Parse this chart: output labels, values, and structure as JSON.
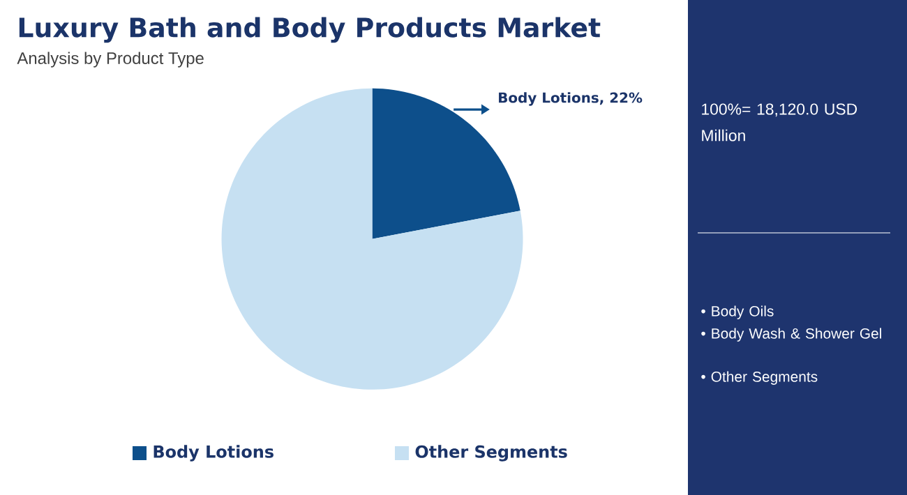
{
  "chart_data": {
    "type": "pie",
    "title": "Luxury Bath and Body Products Market",
    "subtitle": "Analysis by Product Type",
    "categories": [
      "Body Lotions",
      "Other Segments"
    ],
    "values": [
      22,
      78
    ],
    "colors": [
      "#0d4f8b",
      "#c6e0f2"
    ],
    "value_labels": [
      "Body Lotions, 22%",
      null
    ],
    "legend": "bottom",
    "annotations": [
      "100%= 18,120.0 USD Million",
      "• Body Oils",
      "• Body Wash & Shower Gel",
      "• Other Segments"
    ]
  }
}
